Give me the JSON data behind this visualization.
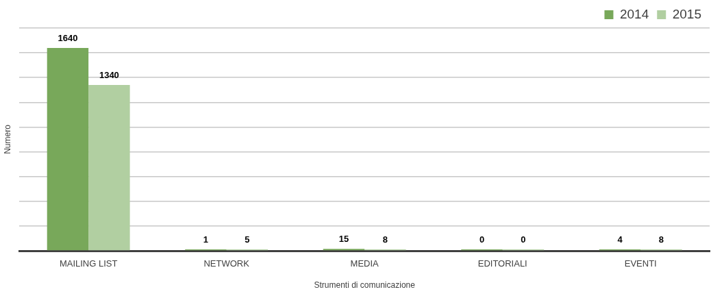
{
  "chart_data": {
    "type": "bar",
    "xlabel": "Strumenti di comunicazione",
    "ylabel": "Numero",
    "categories": [
      "MAILING LIST",
      "NETWORK",
      "MEDIA",
      "EDITORIALI",
      "EVENTI"
    ],
    "series": [
      {
        "name": "2014",
        "color": "#78a85a",
        "values": [
          1640,
          1,
          15,
          0,
          4
        ]
      },
      {
        "name": "2015",
        "color": "#b1cfa1",
        "values": [
          1340,
          5,
          8,
          0,
          8
        ]
      }
    ],
    "ylim": [
      0,
      1800
    ],
    "yticks": [
      {
        "value": 0,
        "label": null
      },
      {
        "value": 200,
        "label": null
      },
      {
        "value": 400,
        "label": null
      },
      {
        "value": 600,
        "label": null
      },
      {
        "value": 800,
        "label": null
      },
      {
        "value": 1000,
        "label": null
      },
      {
        "value": 1200,
        "label": null
      },
      {
        "value": 1400,
        "label": null
      },
      {
        "value": 1600,
        "label": null
      },
      {
        "value": 1800,
        "label": null
      }
    ],
    "grid": "y",
    "legend": "top right",
    "data_labels": true
  }
}
